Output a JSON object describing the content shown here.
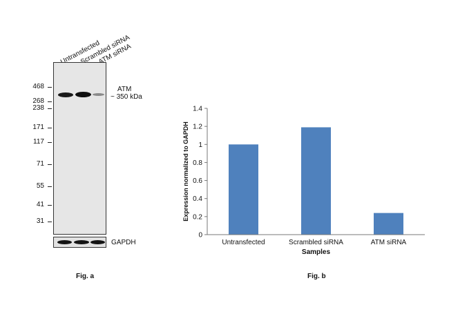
{
  "western_blot": {
    "lanes": [
      "Untransfected",
      "Scrambled siRNA",
      "ATM siRNA"
    ],
    "mw_markers": [
      "468",
      "268",
      "238",
      "171",
      "117",
      "71",
      "55",
      "41",
      "31"
    ],
    "target_label": "ATM",
    "target_size": "~ 350 kDa",
    "loading_control": "GAPDH",
    "band_intensity": [
      0.85,
      0.95,
      0.2
    ],
    "caption": "Fig. a"
  },
  "chart_data": {
    "type": "bar",
    "categories": [
      "Untransfected",
      "Scrambled siRNA",
      "ATM siRNA"
    ],
    "values": [
      1.0,
      1.19,
      0.24
    ],
    "title": "",
    "xlabel": "Samples",
    "ylabel": "Expression normalized to GAPDH",
    "ylim": [
      0,
      1.4
    ],
    "yticks": [
      "0",
      "0.2",
      "0.4",
      "0.6",
      "0.8",
      "1",
      "1.2",
      "1.4"
    ],
    "bar_color": "#4f81bd",
    "grid": false,
    "legend": "none",
    "caption": "Fig. b"
  }
}
